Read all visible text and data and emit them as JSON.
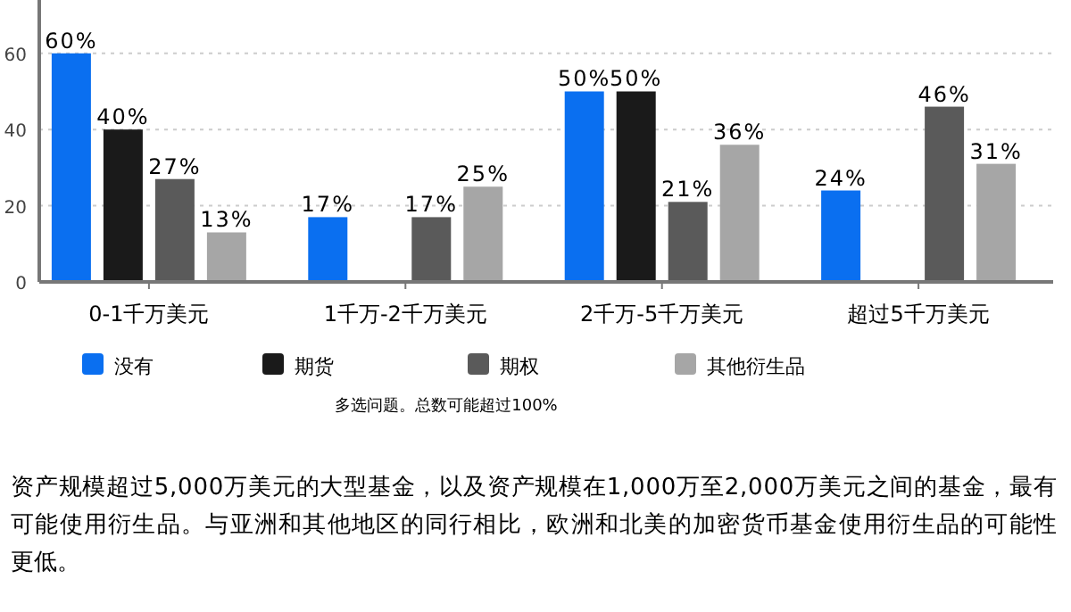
{
  "chart_data": {
    "type": "bar",
    "categories": [
      "0-1千万美元",
      "1千万-2千万美元",
      "2千万-5千万美元",
      "超过5千万美元"
    ],
    "series": [
      {
        "name": "没有",
        "color": "#0a6ff0",
        "values": [
          60,
          17,
          50,
          24
        ],
        "value_labels": [
          "60%",
          "17%",
          "50%",
          "24%"
        ]
      },
      {
        "name": "期货",
        "color": "#1a1a1a",
        "values": [
          40,
          null,
          50,
          null
        ],
        "value_labels": [
          "40%",
          null,
          "50%",
          null
        ]
      },
      {
        "name": "期权",
        "color": "#5a5a5a",
        "values": [
          27,
          17,
          21,
          46
        ],
        "value_labels": [
          "27%",
          "17%",
          "21%",
          "46%"
        ]
      },
      {
        "name": "其他衍生品",
        "color": "#a6a6a6",
        "values": [
          13,
          25,
          36,
          31
        ],
        "value_labels": [
          "13%",
          "25%",
          "36%",
          "31%"
        ]
      }
    ],
    "ylim": [
      0,
      74
    ],
    "yticks": [
      0,
      20,
      40,
      60
    ],
    "grid": "y",
    "legend": "bottom",
    "annotations": [
      "多选问题。总数可能超过100%",
      "资产规模超过5,000万美元的大型基金，以及资产规模在1,000万至2,000万美元之间的基金，最有可能使用衍生品。与亚洲和其他地区的同行相比，欧洲和北美的加密货币基金使用衍生品的可能性更低。"
    ]
  }
}
